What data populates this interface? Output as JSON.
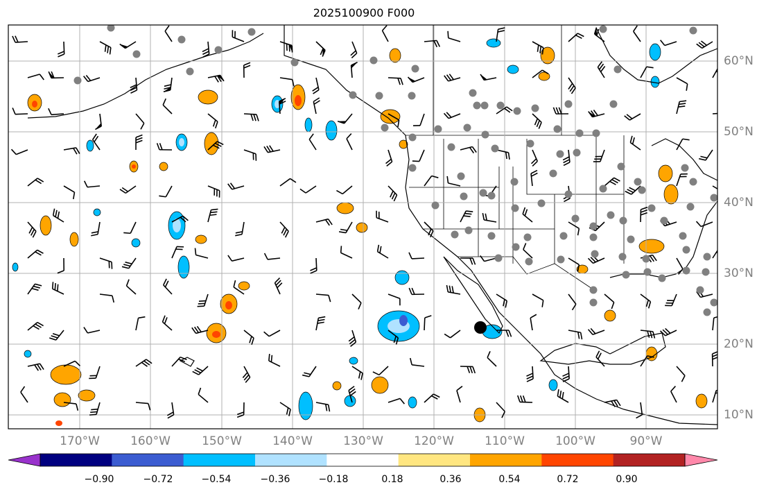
{
  "title": "2025100900 F000",
  "map": {
    "lon_range": [
      -180,
      -80
    ],
    "lat_range": [
      8,
      65
    ],
    "gridlines": true,
    "lon_labels": [
      "170°W",
      "160°W",
      "150°W",
      "140°W",
      "130°W",
      "120°W",
      "110°W",
      "100°W",
      "90°W"
    ],
    "lat_labels": [
      "10°N",
      "20°N",
      "30°N",
      "40°N",
      "50°N",
      "60°N"
    ],
    "label_color": "#808080"
  },
  "colorbar": {
    "extend": "both",
    "tick_labels": [
      "−0.90",
      "−0.72",
      "−0.54",
      "−0.36",
      "−0.18",
      "0.18",
      "0.36",
      "0.54",
      "0.72",
      "0.90"
    ],
    "under_color": "#9932cc",
    "over_color": "#ff88aa",
    "colors": [
      "#000080",
      "#3b5cd1",
      "#00bfff",
      "#b0e2ff",
      "#ffffff",
      "#ffe680",
      "#ffa500",
      "#ff4500",
      "#b22222"
    ]
  }
}
